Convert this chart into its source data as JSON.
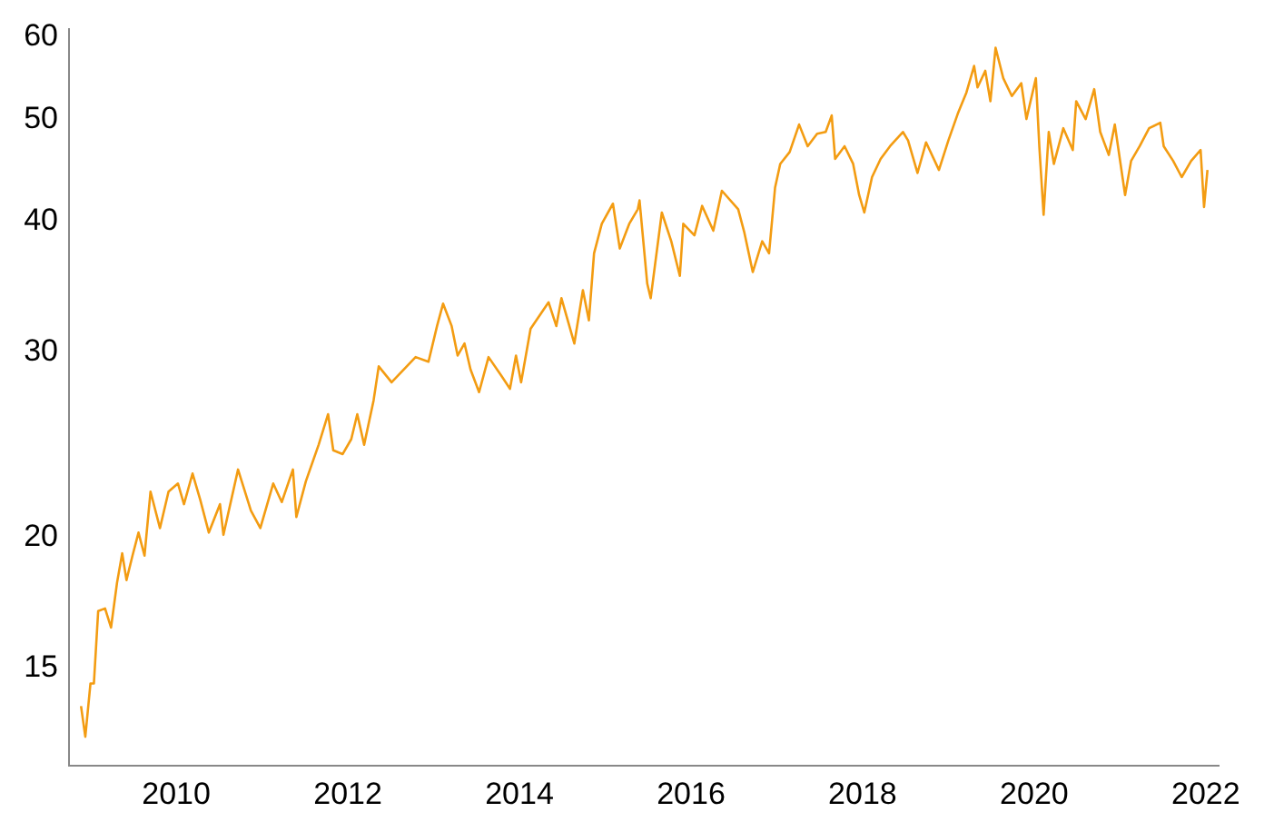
{
  "chart_data": {
    "type": "line",
    "log": "y",
    "grid": false,
    "legend": false,
    "marker": "none",
    "line_style": "solid",
    "xlim": [
      2008.75,
      2022.15
    ],
    "xticks": [
      2010,
      2012,
      2014,
      2016,
      2018,
      2020,
      2022
    ],
    "ylim": [
      12.1,
      61
    ],
    "yticks": [
      15,
      20,
      30,
      40,
      50,
      60
    ],
    "series": [
      {
        "color": "#f39c12",
        "x": [
          2008.89,
          2008.94,
          2009.0,
          2009.04,
          2009.09,
          2009.17,
          2009.24,
          2009.31,
          2009.37,
          2009.42,
          2009.49,
          2009.56,
          2009.63,
          2009.7,
          2009.81,
          2009.91,
          2010.02,
          2010.09,
          2010.19,
          2010.28,
          2010.38,
          2010.51,
          2010.55,
          2010.72,
          2010.87,
          2010.98,
          2011.13,
          2011.23,
          2011.36,
          2011.4,
          2011.51,
          2011.66,
          2011.77,
          2011.83,
          2011.94,
          2012.04,
          2012.11,
          2012.19,
          2012.3,
          2012.36,
          2012.51,
          2012.79,
          2012.94,
          2013.04,
          2013.11,
          2013.21,
          2013.28,
          2013.36,
          2013.43,
          2013.53,
          2013.64,
          2013.79,
          2013.89,
          2013.96,
          2014.02,
          2014.13,
          2014.34,
          2014.43,
          2014.49,
          2014.64,
          2014.74,
          2014.81,
          2014.87,
          2014.96,
          2015.09,
          2015.17,
          2015.28,
          2015.38,
          2015.4,
          2015.49,
          2015.53,
          2015.66,
          2015.77,
          2015.87,
          2015.91,
          2016.04,
          2016.13,
          2016.26,
          2016.36,
          2016.55,
          2016.62,
          2016.72,
          2016.83,
          2016.91,
          2016.98,
          2017.04,
          2017.15,
          2017.26,
          2017.36,
          2017.47,
          2017.57,
          2017.64,
          2017.68,
          2017.79,
          2017.89,
          2017.96,
          2018.02,
          2018.11,
          2018.21,
          2018.32,
          2018.47,
          2018.53,
          2018.64,
          2018.74,
          2018.89,
          2019.0,
          2019.11,
          2019.21,
          2019.3,
          2019.34,
          2019.43,
          2019.49,
          2019.55,
          2019.64,
          2019.74,
          2019.85,
          2019.91,
          2020.02,
          2020.06,
          2020.11,
          2020.17,
          2020.23,
          2020.34,
          2020.45,
          2020.49,
          2020.6,
          2020.7,
          2020.77,
          2020.87,
          2020.94,
          2021.06,
          2021.13,
          2021.23,
          2021.34,
          2021.47,
          2021.51,
          2021.62,
          2021.72,
          2021.83,
          2021.94,
          2021.98,
          2022.02
        ],
        "values": [
          13.8,
          12.9,
          14.5,
          14.5,
          17.0,
          17.1,
          16.4,
          18.1,
          19.3,
          18.2,
          19.2,
          20.2,
          19.2,
          22.1,
          20.4,
          22.1,
          22.5,
          21.5,
          23.0,
          21.7,
          20.2,
          21.5,
          20.1,
          23.2,
          21.2,
          20.4,
          22.5,
          21.6,
          23.2,
          20.9,
          22.6,
          24.5,
          26.2,
          24.2,
          24.0,
          24.8,
          26.2,
          24.5,
          27.0,
          29.1,
          28.1,
          29.7,
          29.4,
          31.8,
          33.4,
          31.8,
          29.8,
          30.6,
          28.9,
          27.5,
          29.7,
          28.5,
          27.7,
          29.8,
          28.1,
          31.6,
          33.5,
          31.8,
          33.8,
          30.6,
          34.4,
          32.2,
          37.3,
          39.8,
          41.6,
          37.7,
          39.8,
          41.1,
          41.9,
          34.9,
          33.8,
          40.8,
          38.3,
          35.5,
          39.8,
          38.8,
          41.4,
          39.2,
          42.8,
          41.1,
          39.1,
          35.8,
          38.3,
          37.3,
          43.1,
          45.4,
          46.6,
          49.5,
          47.2,
          48.5,
          48.7,
          50.5,
          45.9,
          47.2,
          45.4,
          42.4,
          40.8,
          44.1,
          45.9,
          47.2,
          48.7,
          47.8,
          44.5,
          47.6,
          44.8,
          47.8,
          50.7,
          53.1,
          56.3,
          53.7,
          55.7,
          52.1,
          58.6,
          54.8,
          52.7,
          54.2,
          50.1,
          54.8,
          47.2,
          40.6,
          48.7,
          45.4,
          49.1,
          46.8,
          52.1,
          50.1,
          53.5,
          48.7,
          46.3,
          49.5,
          42.4,
          45.7,
          47.2,
          49.1,
          49.7,
          47.2,
          45.7,
          44.1,
          45.7,
          46.8,
          41.3,
          44.8
        ]
      }
    ]
  }
}
